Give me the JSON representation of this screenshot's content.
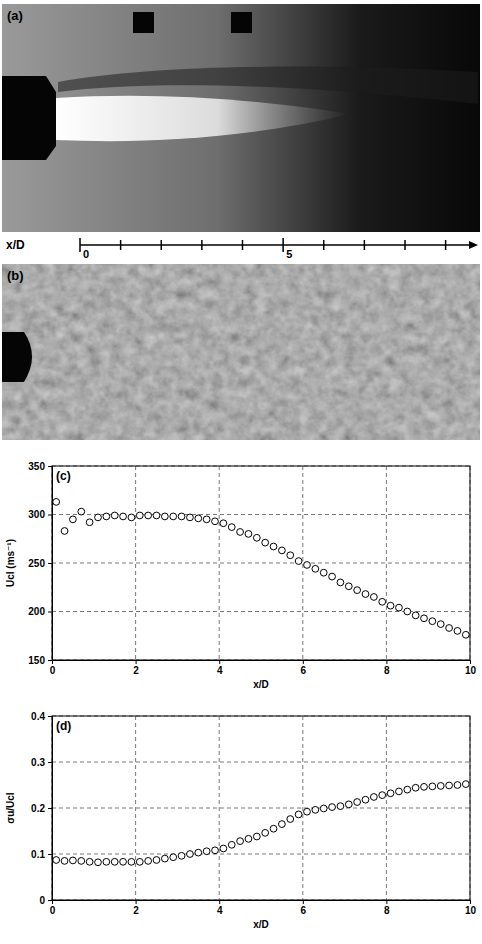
{
  "figure_panels": [
    {
      "label": "(a)"
    },
    {
      "label": "(b)"
    }
  ],
  "ruler": {
    "title": "x/D",
    "xlim": [
      0,
      9.6
    ],
    "xticks": [
      0,
      5
    ],
    "minor_ticks": [
      1,
      2,
      3,
      4,
      6,
      7,
      8,
      9
    ]
  },
  "chart_data": [
    {
      "type": "scatter",
      "title": "(c)",
      "x_label": "x/D",
      "y_label": "Ucl (ms⁻¹)",
      "marker": "circle",
      "grid": true,
      "xlim": [
        0,
        10
      ],
      "ylim": [
        150,
        350
      ],
      "xticks": [
        0,
        2,
        4,
        6,
        8,
        10
      ],
      "yticks": [
        150,
        200,
        250,
        300,
        350
      ],
      "x": [
        0.1,
        0.3,
        0.5,
        0.7,
        0.9,
        1.1,
        1.3,
        1.5,
        1.7,
        1.9,
        2.1,
        2.3,
        2.5,
        2.7,
        2.9,
        3.1,
        3.3,
        3.5,
        3.7,
        3.9,
        4.1,
        4.3,
        4.5,
        4.7,
        4.9,
        5.1,
        5.3,
        5.5,
        5.7,
        5.9,
        6.1,
        6.3,
        6.5,
        6.7,
        6.9,
        7.1,
        7.3,
        7.5,
        7.7,
        7.9,
        8.1,
        8.3,
        8.5,
        8.7,
        8.9,
        9.1,
        9.3,
        9.5,
        9.7,
        9.9
      ],
      "values": [
        313,
        283,
        295,
        303,
        292,
        297,
        298,
        299,
        298,
        297,
        299,
        299,
        299,
        298,
        298,
        298,
        297,
        296,
        295,
        293,
        291,
        287,
        282,
        280,
        276,
        271,
        267,
        263,
        258,
        252,
        248,
        244,
        240,
        236,
        230,
        226,
        222,
        218,
        215,
        210,
        206,
        204,
        200,
        196,
        193,
        190,
        187,
        183,
        180,
        176
      ]
    },
    {
      "type": "scatter",
      "title": "(d)",
      "x_label": "x/D",
      "y_label": "σu/Ucl",
      "marker": "circle",
      "grid": true,
      "xlim": [
        0,
        10
      ],
      "ylim": [
        0,
        0.4
      ],
      "xticks": [
        0,
        2,
        4,
        6,
        8,
        10
      ],
      "yticks": [
        0,
        0.1,
        0.2,
        0.3,
        0.4
      ],
      "x": [
        0.1,
        0.3,
        0.5,
        0.7,
        0.9,
        1.1,
        1.3,
        1.5,
        1.7,
        1.9,
        2.1,
        2.3,
        2.5,
        2.7,
        2.9,
        3.1,
        3.3,
        3.5,
        3.7,
        3.9,
        4.1,
        4.3,
        4.5,
        4.7,
        4.9,
        5.1,
        5.3,
        5.5,
        5.7,
        5.9,
        6.1,
        6.3,
        6.5,
        6.7,
        6.9,
        7.1,
        7.3,
        7.5,
        7.7,
        7.9,
        8.1,
        8.3,
        8.5,
        8.7,
        8.9,
        9.1,
        9.3,
        9.5,
        9.7,
        9.9
      ],
      "values": [
        0.087,
        0.085,
        0.086,
        0.085,
        0.083,
        0.082,
        0.083,
        0.083,
        0.083,
        0.083,
        0.083,
        0.085,
        0.087,
        0.09,
        0.093,
        0.096,
        0.1,
        0.103,
        0.106,
        0.108,
        0.112,
        0.12,
        0.128,
        0.133,
        0.138,
        0.146,
        0.155,
        0.165,
        0.176,
        0.186,
        0.192,
        0.196,
        0.199,
        0.202,
        0.204,
        0.208,
        0.213,
        0.218,
        0.224,
        0.228,
        0.232,
        0.236,
        0.24,
        0.244,
        0.246,
        0.247,
        0.248,
        0.249,
        0.25,
        0.252
      ]
    }
  ]
}
